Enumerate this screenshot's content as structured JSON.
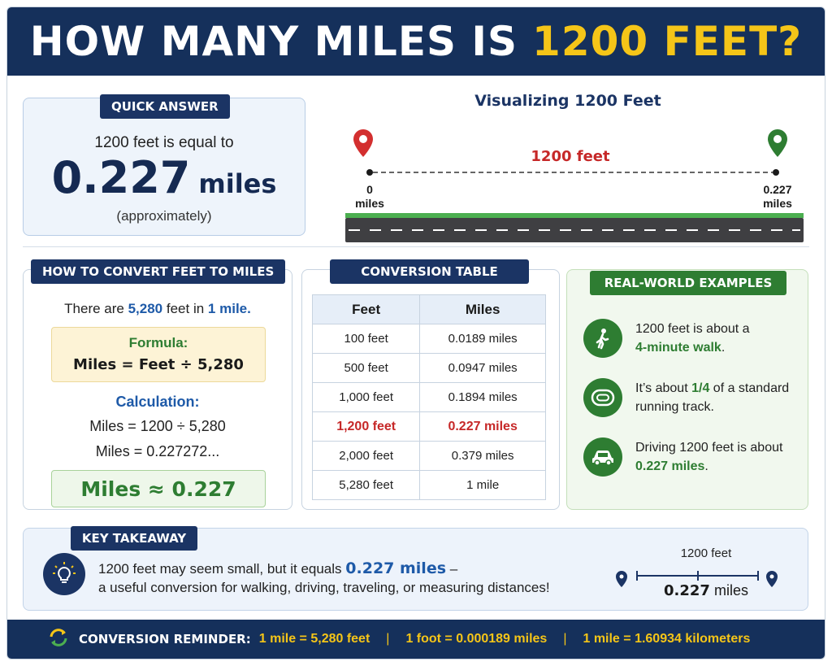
{
  "header": {
    "title_main": "HOW MANY MILES IS",
    "title_accent": "1200 FEET?"
  },
  "quick_answer": {
    "label": "QUICK ANSWER",
    "line1": "1200 feet is equal to",
    "value": "0.227",
    "unit": "miles",
    "note": "(approximately)"
  },
  "visual": {
    "title": "Visualizing 1200 Feet",
    "distance_label": "1200 feet",
    "start_value": "0",
    "start_unit": "miles",
    "end_value": "0.227",
    "end_unit": "miles",
    "start_color": "#d32f2f",
    "end_color": "#2e7d32"
  },
  "how_to": {
    "label": "HOW TO CONVERT FEET TO MILES",
    "intro_pre": "There are",
    "intro_feet": "5,280",
    "intro_mid": "feet in",
    "intro_mile": "1 mile.",
    "formula_label": "Formula:",
    "formula": "Miles = Feet ÷ 5,280",
    "calc_label": "Calculation:",
    "calc_line1": "Miles = 1200 ÷ 5,280",
    "calc_line2": "Miles = 0.227272...",
    "result": "Miles ≈ 0.227"
  },
  "table": {
    "label": "CONVERSION TABLE",
    "headers": [
      "Feet",
      "Miles"
    ],
    "rows": [
      [
        "100 feet",
        "0.0189 miles"
      ],
      [
        "500 feet",
        "0.0947 miles"
      ],
      [
        "1,000 feet",
        "0.1894 miles"
      ],
      [
        "1,200 feet",
        "0.227 miles"
      ],
      [
        "2,000 feet",
        "0.379 miles"
      ],
      [
        "5,280 feet",
        "1 mile"
      ]
    ],
    "highlight_row": 3
  },
  "examples": {
    "label": "REAL-WORLD EXAMPLES",
    "items": [
      {
        "icon": "walking-person-icon",
        "pre": "1200 feet is about a",
        "bold": "4-minute walk",
        "post": "."
      },
      {
        "icon": "running-track-icon",
        "pre": "It’s about",
        "bold": "1/4",
        "post": "of a standard running track."
      },
      {
        "icon": "car-icon",
        "pre": "Driving 1200 feet is about",
        "bold": "0.227 miles",
        "post": "."
      }
    ]
  },
  "takeaway": {
    "label": "KEY TAKEAWAY",
    "line1_pre": "1200 feet may seem small, but it equals",
    "line1_value": "0.227 miles",
    "line1_post": "–",
    "line2": "a useful conversion for walking, driving, traveling, or measuring distances!",
    "mini_top": "1200 feet",
    "mini_value": "0.227",
    "mini_unit": "miles"
  },
  "footer": {
    "label": "CONVERSION REMINDER:",
    "facts": [
      "1 mile = 5,280 feet",
      "1 foot = 0.000189 miles",
      "1 mile = 1.60934 kilometers"
    ],
    "separator": "|"
  },
  "colors": {
    "navy": "#15305b",
    "yellow": "#f5c518",
    "green": "#2e7d32",
    "red": "#c62828",
    "blue": "#1e5aa8"
  }
}
